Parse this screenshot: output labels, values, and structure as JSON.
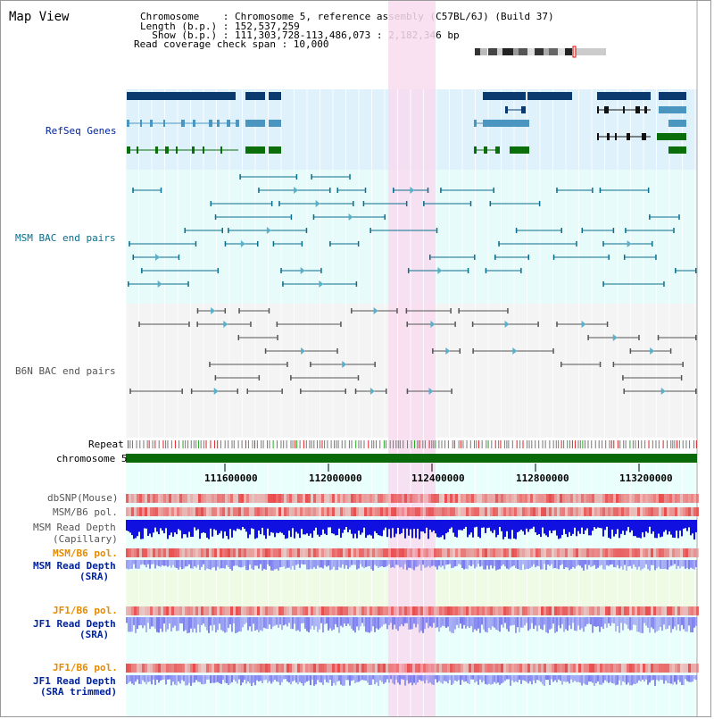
{
  "header": {
    "title": "Map View",
    "info_lines": [
      "Chromosome    : Chromosome 5, reference assembly (C57BL/6J) (Build 37)",
      "Length (b.p.) : 152,537,259",
      "  Show (b.p.) : 111,303,728-113,486,073 : 2,182,346 bp",
      "Read coverage check span : 10,000"
    ]
  },
  "tracks": {
    "refseq": "RefSeq Genes",
    "msm_bac": "MSM BAC end pairs",
    "b6n_bac": "B6N BAC end pairs",
    "repeat": "Repeat",
    "chromosome": "chromosome 5",
    "dbsnp": "dbSNP(Mouse)",
    "msm_b6_pol_1": "MSM/B6 pol.",
    "msm_depth_cap_1": "MSM Read Depth",
    "msm_depth_cap_2": "(Capillary)",
    "msm_b6_pol_2": "MSM/B6 pol.",
    "msm_depth_sra_1": "MSM Read Depth",
    "msm_depth_sra_2": "(SRA)",
    "jf1_b6_pol_1": "JF1/B6 pol.",
    "jf1_depth_sra_1": "JF1 Read Depth",
    "jf1_depth_sra_2": "(SRA)",
    "jf1_b6_pol_2": "JF1/B6 pol.",
    "jf1_depth_trim_1": "JF1 Read Depth",
    "jf1_depth_trim_2": "(SRA trimmed)"
  },
  "axis": {
    "ticks": [
      "111600000",
      "112000000",
      "112400000",
      "112800000",
      "113200000"
    ]
  },
  "colors": {
    "refseq_bg": "#dff1fb",
    "msm_bg": "#e8fbfb",
    "b6n_bg": "#f4f4f4",
    "lower_bg": "#e8fffb",
    "highlight": "#f8dcf0",
    "gene_navy": "#0b3a6e",
    "gene_teal": "#4a96c0",
    "gene_green": "#0a6e0a",
    "chrom_green": "#0a6a0a",
    "depth_blue": "#1010e0",
    "depth_lightblue": "#7a7af0",
    "pol_red": "#e84c4c",
    "orange": "#e68a00",
    "dark_blue_text": "#00239e",
    "teal_text": "#0a6e8c"
  }
}
